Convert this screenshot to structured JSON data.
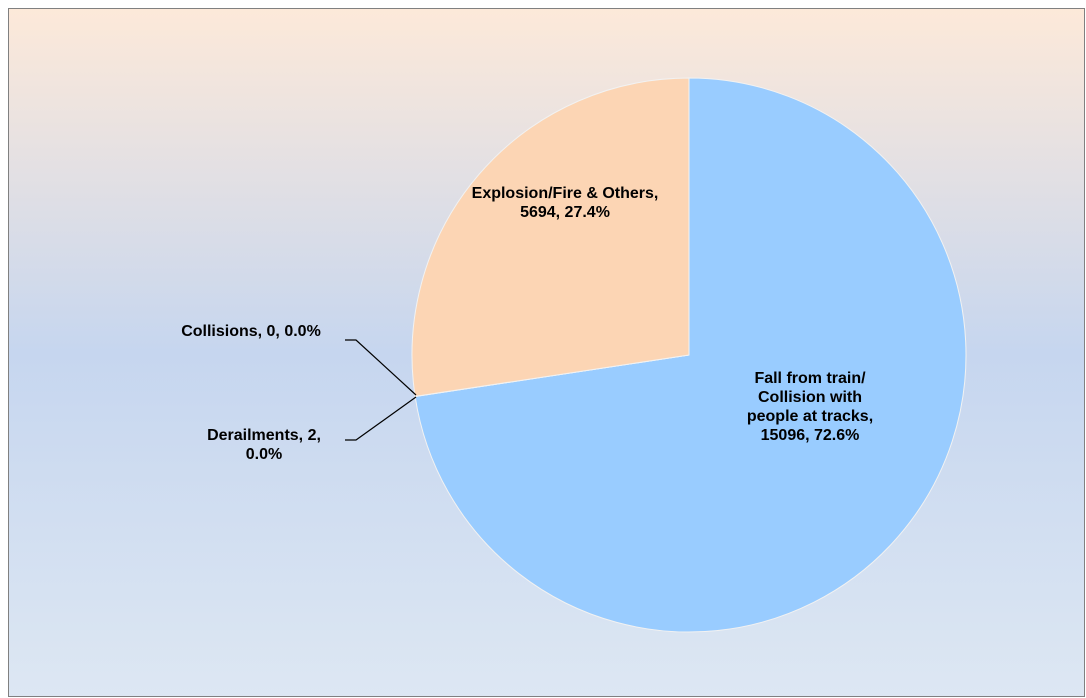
{
  "chart_data": {
    "type": "pie",
    "categories": [
      "Fall from train/ Collision with people at tracks",
      "Derailments",
      "Collisions",
      "Explosion/Fire & Others"
    ],
    "values": [
      15096,
      2,
      0,
      5694
    ],
    "data_labels": [
      "Fall from train/ Collision with people at tracks, 15096, 72.6%",
      "Derailments, 2, 0.0%",
      "Collisions, 0, 0.0%",
      "Explosion/Fire & Others, 5694, 27.4%"
    ],
    "colors": [
      "#99ccff",
      "#ffcc99",
      "#ccffcc",
      "#fcd5b4"
    ],
    "start_angle": 0,
    "direction": "clockwise"
  }
}
